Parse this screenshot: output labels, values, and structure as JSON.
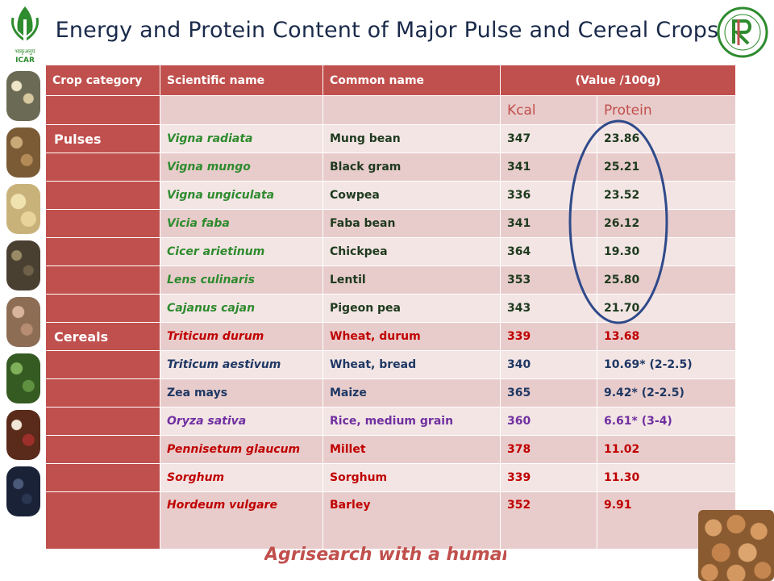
{
  "slide": {
    "title": "Energy and Protein Content of Major Pulse and Cereal Crops",
    "left_logo_text": "ICAR",
    "tagline": "Agrisearch with a human touch"
  },
  "table": {
    "headers": [
      "Crop category",
      "Scientific name",
      "Common name",
      "(Value /100g)"
    ],
    "subheaders": [
      "Kcal",
      "Protein"
    ],
    "rows": [
      {
        "category": "Pulses",
        "scientific": "Vigna radiata",
        "common": "Mung bean",
        "kcal": "347",
        "protein": "23.86"
      },
      {
        "category": "",
        "scientific": "Vigna mungo",
        "common": "Black gram",
        "kcal": "341",
        "protein": "25.21"
      },
      {
        "category": "",
        "scientific": "Vigna ungiculata",
        "common": "Cowpea",
        "kcal": "336",
        "protein": "23.52"
      },
      {
        "category": "",
        "scientific": "Vicia faba",
        "common": "Faba bean",
        "kcal": "341",
        "protein": "26.12"
      },
      {
        "category": "",
        "scientific": "Cicer arietinum",
        "common": "Chickpea",
        "kcal": "364",
        "protein": "19.30"
      },
      {
        "category": "",
        "scientific": "Lens culinaris",
        "common": "Lentil",
        "kcal": "353",
        "protein": "25.80"
      },
      {
        "category": "",
        "scientific": "Cajanus cajan",
        "common": "Pigeon pea",
        "kcal": "343",
        "protein": "21.70"
      },
      {
        "category": "Cereals",
        "scientific": "Triticum durum",
        "common": "Wheat, durum",
        "kcal": "339",
        "protein": "13.68"
      },
      {
        "category": "",
        "scientific": "Triticum aestivum",
        "common": "Wheat, bread",
        "kcal": "340",
        "protein": "10.69* (2-2.5)"
      },
      {
        "category": "",
        "scientific": "Zea mays",
        "common": "Maize",
        "kcal": "365",
        "protein": "9.42* (2-2.5)"
      },
      {
        "category": "",
        "scientific": "Oryza sativa",
        "common": "Rice, medium grain",
        "kcal": "360",
        "protein": "6.61*  (3-4)"
      },
      {
        "category": "",
        "scientific": "Pennisetum glaucum",
        "common": "Millet",
        "kcal": "378",
        "protein": "11.02"
      },
      {
        "category": "",
        "scientific": "Sorghum",
        "common": "Sorghum",
        "kcal": "339",
        "protein": "11.30"
      },
      {
        "category": "",
        "scientific": "Hordeum vulgare",
        "common": "Barley",
        "kcal": "352",
        "protein": "9.91"
      }
    ]
  },
  "colors": {
    "header_red": "#c0504d",
    "row_band_dark": "#e8cccb",
    "row_band_light": "#f3e5e4",
    "pulse_text_green": "#2e8b2e",
    "circle_blue": "#2f4a8a"
  }
}
